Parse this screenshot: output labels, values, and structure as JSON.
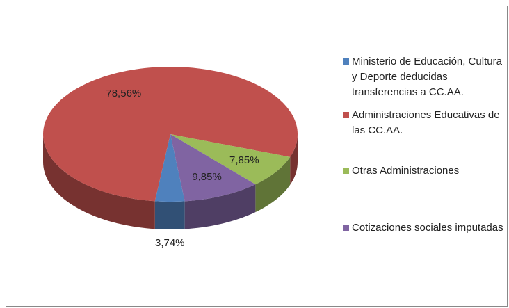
{
  "chart_data": {
    "type": "pie",
    "categories": [
      "Ministerio de Educación, Cultura y Deporte  deducidas transferencias a CC.AA.",
      "Administraciones Educativas de las CC.AA.",
      "Otras Administraciones",
      "Cotizaciones sociales imputadas"
    ],
    "values": [
      3.74,
      78.56,
      7.85,
      9.85
    ],
    "value_labels": [
      "3,74%",
      "78,56%",
      "7,85%",
      "9,85%"
    ],
    "colors": [
      "#4f81bd",
      "#c0504d",
      "#9bbb59",
      "#8064a2"
    ],
    "legend": "right"
  }
}
